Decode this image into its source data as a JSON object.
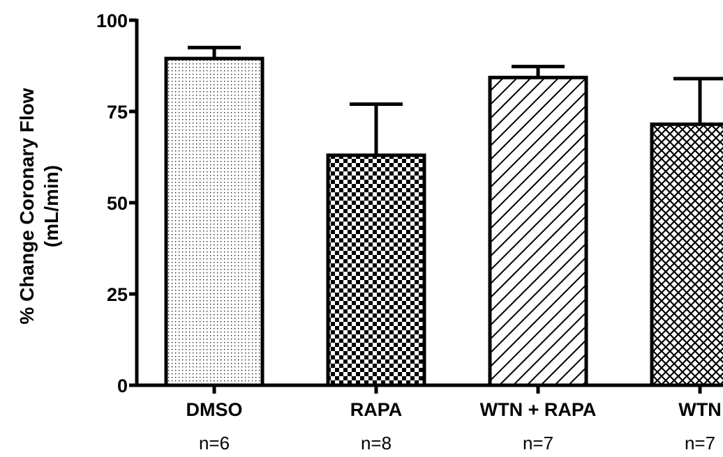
{
  "chart_data": {
    "type": "bar",
    "title": "",
    "ylabel": "% Change Coronary Flow",
    "ylabel_units": "(mL/min)",
    "xlabel": "",
    "ylim": [
      0,
      100
    ],
    "yticks": [
      0,
      25,
      50,
      75,
      100
    ],
    "grid": false,
    "categories": [
      "DMSO",
      "RAPA",
      "WTN + RAPA",
      "WTN"
    ],
    "n_labels": [
      "n=6",
      "n=8",
      "n=7",
      "n=7"
    ],
    "values": [
      89.5,
      63,
      84.3,
      71.5
    ],
    "errors": [
      3,
      14,
      3,
      12.5
    ],
    "patterns": [
      "dots",
      "checkerboard",
      "diagonal-lines",
      "crosshatch"
    ]
  }
}
